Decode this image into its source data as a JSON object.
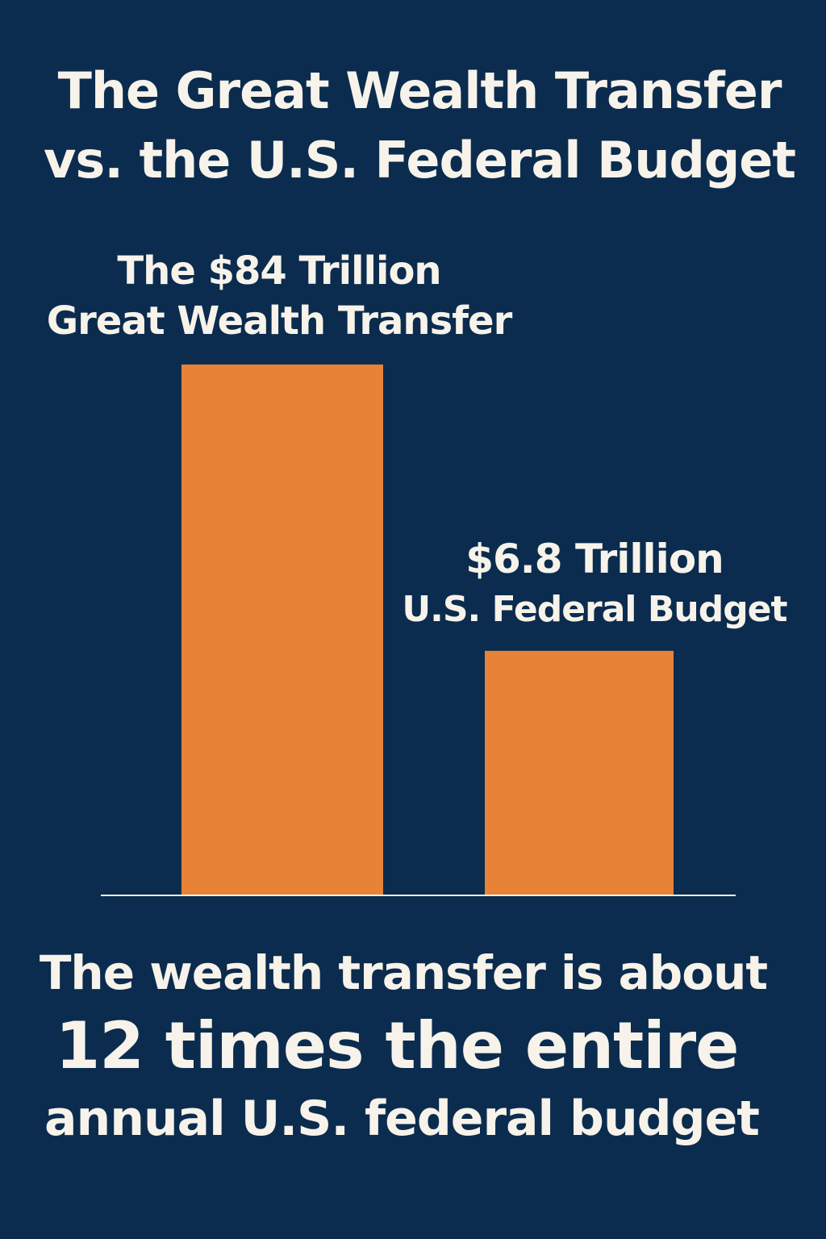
{
  "title_lines": [
    "The Great Wealth Transfer",
    "vs. the U.S. Federal Budget"
  ],
  "colors": {
    "background": "#0b2c4e",
    "bar": "#e88236",
    "text": "#f7f3ea",
    "baseline": "#f7f3ea"
  },
  "chart_data": {
    "type": "bar",
    "title": "The Great Wealth Transfer vs. the U.S. Federal Budget",
    "categories": [
      "Great Wealth Transfer",
      "U.S. Federal Budget"
    ],
    "values": [
      84,
      6.8
    ],
    "unit": "Trillion USD",
    "scale": "not to scale",
    "grid": false,
    "data_labels": [
      {
        "line1": "The $84 Trillion",
        "line2": "Great Wealth Transfer"
      },
      {
        "line1": "$6.8 Trillion",
        "line2": "U.S. Federal Budget"
      }
    ]
  },
  "footer": {
    "line1": "The wealth transfer is about",
    "line2": "12 times the entire",
    "line3": "annual U.S. federal budget"
  }
}
